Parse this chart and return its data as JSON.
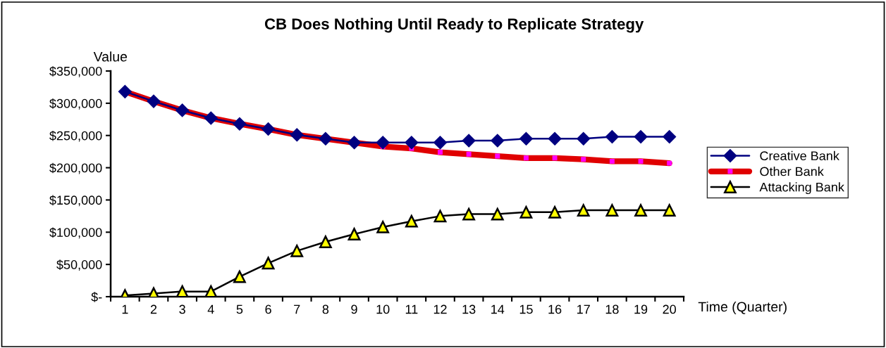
{
  "chart_data": {
    "type": "line",
    "title": "CB Does Nothing Until Ready to Replicate Strategy",
    "ylabel": "Value",
    "xlabel": "Time (Quarter)",
    "categories": [
      "1",
      "2",
      "3",
      "4",
      "5",
      "6",
      "7",
      "8",
      "9",
      "10",
      "11",
      "12",
      "13",
      "14",
      "15",
      "16",
      "17",
      "18",
      "19",
      "20"
    ],
    "series": [
      {
        "name": "Creative Bank",
        "color": "#000080",
        "marker": "diamond",
        "values": [
          318000,
          303000,
          289000,
          277000,
          268000,
          260000,
          251000,
          245000,
          239000,
          239000,
          239000,
          239000,
          242000,
          242000,
          245000,
          245000,
          245000,
          248000,
          248000,
          248000
        ]
      },
      {
        "name": "Other Bank",
        "color": "#e00000",
        "marker": "square",
        "values": [
          318000,
          303000,
          289000,
          277000,
          268000,
          260000,
          251000,
          245000,
          239000,
          233000,
          230000,
          224000,
          221000,
          218000,
          215000,
          215000,
          213000,
          210000,
          210000,
          207000
        ]
      },
      {
        "name": "Attacking Bank",
        "color": "#000000",
        "marker": "triangle",
        "values": [
          2000,
          5000,
          8000,
          8000,
          31000,
          52000,
          71000,
          85000,
          97000,
          108000,
          117000,
          125000,
          128000,
          128000,
          131000,
          131000,
          134000,
          134000,
          134000,
          134000
        ]
      }
    ],
    "ylim": [
      0,
      350000
    ],
    "yticks": [
      {
        "value": 0,
        "label": "$-"
      },
      {
        "value": 50000,
        "label": "$50,000"
      },
      {
        "value": 100000,
        "label": "$100,000"
      },
      {
        "value": 150000,
        "label": "$150,000"
      },
      {
        "value": 200000,
        "label": "$200,000"
      },
      {
        "value": 250000,
        "label": "$250,000"
      },
      {
        "value": 300000,
        "label": "$300,000"
      },
      {
        "value": 350000,
        "label": "$350,000"
      }
    ],
    "grid": false,
    "legend": "right",
    "line_style": "solid"
  }
}
